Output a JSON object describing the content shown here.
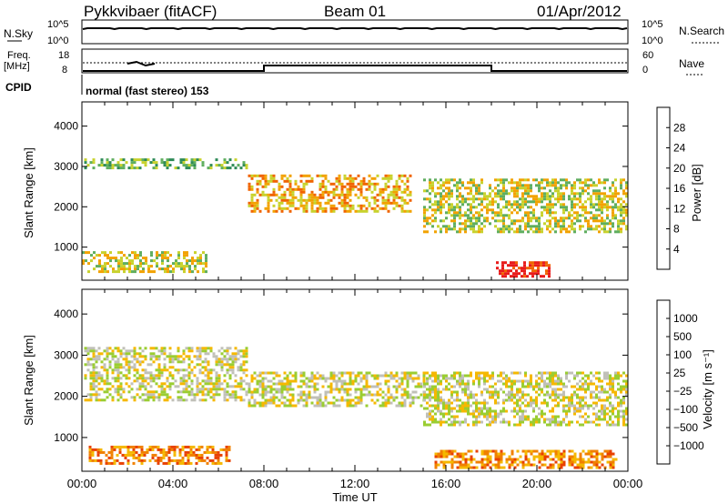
{
  "header": {
    "station": "Pykkvibaer (fitACF)",
    "beam": "Beam 01",
    "date": "01/Apr/2012"
  },
  "meta_panels": {
    "nsky_label": "N.Sky",
    "nsearch_label": "N.Search",
    "noise_ticks": [
      "10^5",
      "10^0"
    ],
    "freq_label_1": "Freq.",
    "freq_label_2": "[MHz]",
    "freq_ticks": [
      "18",
      "8"
    ],
    "nave_label": "Nave",
    "nave_ticks": [
      "60",
      "0"
    ],
    "cpid_label": "CPID",
    "cpid_text": "normal (fast stereo) 153"
  },
  "chart_data": [
    {
      "type": "heatmap",
      "title": "",
      "xlabel": "Time UT",
      "ylabel": "Slant Range [km]",
      "x_ticks": [
        "00:00",
        "04:00",
        "08:00",
        "12:00",
        "16:00",
        "20:00",
        "00:00"
      ],
      "y_ticks": [
        1000,
        2000,
        3000,
        4000
      ],
      "xlim_hours": [
        0,
        24
      ],
      "ylim_km": [
        180,
        4600
      ],
      "colorbar": {
        "label": "Power [dB]",
        "ticks": [
          4,
          8,
          12,
          16,
          20,
          24,
          28
        ],
        "colors": [
          "#1a1aff",
          "#2c55c8",
          "#2e8b57",
          "#5fae5f",
          "#c8d22d",
          "#f2a200",
          "#f06400",
          "#e81b1b"
        ]
      },
      "features": [
        {
          "t0": 0.1,
          "t1": 7.3,
          "r0": 2950,
          "r1": 3200,
          "level": 3
        },
        {
          "t0": 7.3,
          "t1": 14.5,
          "r0": 1900,
          "r1": 2800,
          "level": 5
        },
        {
          "t0": 15.0,
          "t1": 24.0,
          "r0": 1400,
          "r1": 2700,
          "level": 4
        },
        {
          "t0": 18.2,
          "t1": 20.6,
          "r0": 300,
          "r1": 650,
          "level": 7
        },
        {
          "t0": 0.0,
          "t1": 5.5,
          "r0": 400,
          "r1": 900,
          "level": 4
        }
      ]
    },
    {
      "type": "heatmap",
      "title": "",
      "xlabel": "Time UT",
      "ylabel": "Slant Range [km]",
      "x_ticks": [
        "00:00",
        "04:00",
        "08:00",
        "12:00",
        "16:00",
        "20:00",
        "00:00"
      ],
      "y_ticks": [
        1000,
        2000,
        3000,
        4000
      ],
      "xlim_hours": [
        0,
        24
      ],
      "ylim_km": [
        180,
        4600
      ],
      "colorbar": {
        "label": "Velocity [m s⁻¹]",
        "ticks": [
          "1000",
          "500",
          "100",
          "25",
          "−25",
          "−100",
          "−500",
          "−1000"
        ],
        "colors": [
          "#1a3fb0",
          "#2a8a4a",
          "#3aa83a",
          "#9acd32",
          "#c0c0b8",
          "#f5b800",
          "#f08000",
          "#e84000",
          "#e81010"
        ]
      },
      "features": [
        {
          "t0": 0.1,
          "t1": 7.3,
          "r0": 1900,
          "r1": 3200,
          "level": 4
        },
        {
          "t0": 7.3,
          "t1": 15.0,
          "r0": 1800,
          "r1": 2600,
          "level": 4
        },
        {
          "t0": 15.0,
          "t1": 24.0,
          "r0": 1300,
          "r1": 2600,
          "level": 4
        },
        {
          "t0": 0.3,
          "t1": 6.5,
          "r0": 400,
          "r1": 800,
          "level": 6
        },
        {
          "t0": 15.5,
          "t1": 23.5,
          "r0": 300,
          "r1": 700,
          "level": 6
        }
      ]
    }
  ]
}
